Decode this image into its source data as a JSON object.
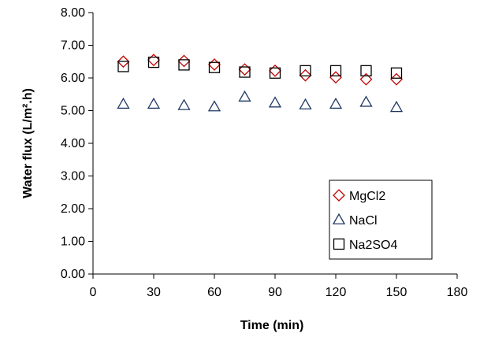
{
  "chart_data": {
    "type": "scatter",
    "xlabel": "Time (min)",
    "ylabel": "Water flux (L/m².h)",
    "xlim": [
      0,
      180
    ],
    "ylim": [
      0,
      8
    ],
    "xticks": [
      "0",
      "30",
      "60",
      "90",
      "120",
      "150",
      "180"
    ],
    "yticks": [
      "0.00",
      "1.00",
      "2.00",
      "3.00",
      "4.00",
      "5.00",
      "6.00",
      "7.00",
      "8.00"
    ],
    "grid": false,
    "legend_position": "bottom-right",
    "series": [
      {
        "name": "MgCl2",
        "marker": "diamond",
        "color": "#c00000",
        "x": [
          15,
          30,
          45,
          60,
          75,
          90,
          105,
          120,
          135,
          150
        ],
        "y": [
          6.5,
          6.55,
          6.52,
          6.41,
          6.26,
          6.22,
          6.08,
          6.02,
          5.96,
          5.96
        ]
      },
      {
        "name": "NaCl",
        "marker": "triangle",
        "color": "#1f3864",
        "x": [
          15,
          30,
          45,
          60,
          75,
          90,
          105,
          120,
          135,
          150
        ],
        "y": [
          5.2,
          5.2,
          5.16,
          5.12,
          5.42,
          5.24,
          5.18,
          5.2,
          5.26,
          5.1
        ]
      },
      {
        "name": "Na2SO4",
        "marker": "square",
        "color": "#000000",
        "x": [
          15,
          30,
          45,
          60,
          75,
          90,
          105,
          120,
          135,
          150
        ],
        "y": [
          6.35,
          6.48,
          6.4,
          6.32,
          6.18,
          6.15,
          6.22,
          6.22,
          6.22,
          6.15
        ]
      }
    ]
  }
}
